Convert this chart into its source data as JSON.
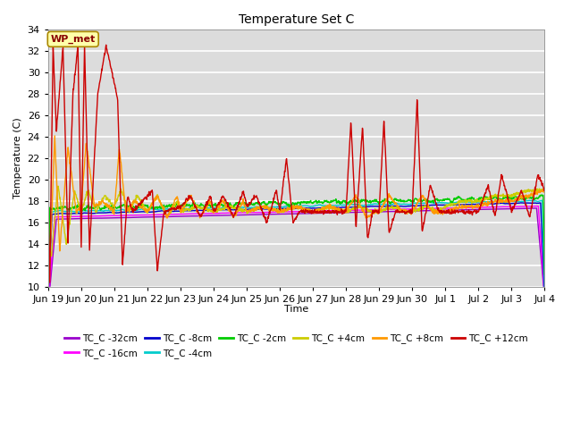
{
  "title": "Temperature Set C",
  "xlabel": "Time",
  "ylabel": "Temperature (C)",
  "ylim": [
    10,
    34
  ],
  "yticks": [
    10,
    12,
    14,
    16,
    18,
    20,
    22,
    24,
    26,
    28,
    30,
    32,
    34
  ],
  "bg_color": "#dcdcdc",
  "series_colors": {
    "TC_C -32cm": "#9900cc",
    "TC_C -16cm": "#ff00ff",
    "TC_C -8cm": "#0000cc",
    "TC_C -4cm": "#00cccc",
    "TC_C -2cm": "#00cc00",
    "TC_C +4cm": "#cccc00",
    "TC_C +8cm": "#ff9900",
    "TC_C +12cm": "#cc0000"
  },
  "x_tick_labels": [
    "Jun 19",
    "Jun 20",
    "Jun 21",
    "Jun 22",
    "Jun 23",
    "Jun 24",
    "Jun 25",
    "Jun 26",
    "Jun 27",
    "Jun 28",
    "Jun 29",
    "Jun 30",
    "Jul 1",
    "Jul 2",
    "Jul 3",
    "Jul 4"
  ],
  "legend_ncol": 6,
  "figsize": [
    6.4,
    4.8
  ],
  "dpi": 100
}
